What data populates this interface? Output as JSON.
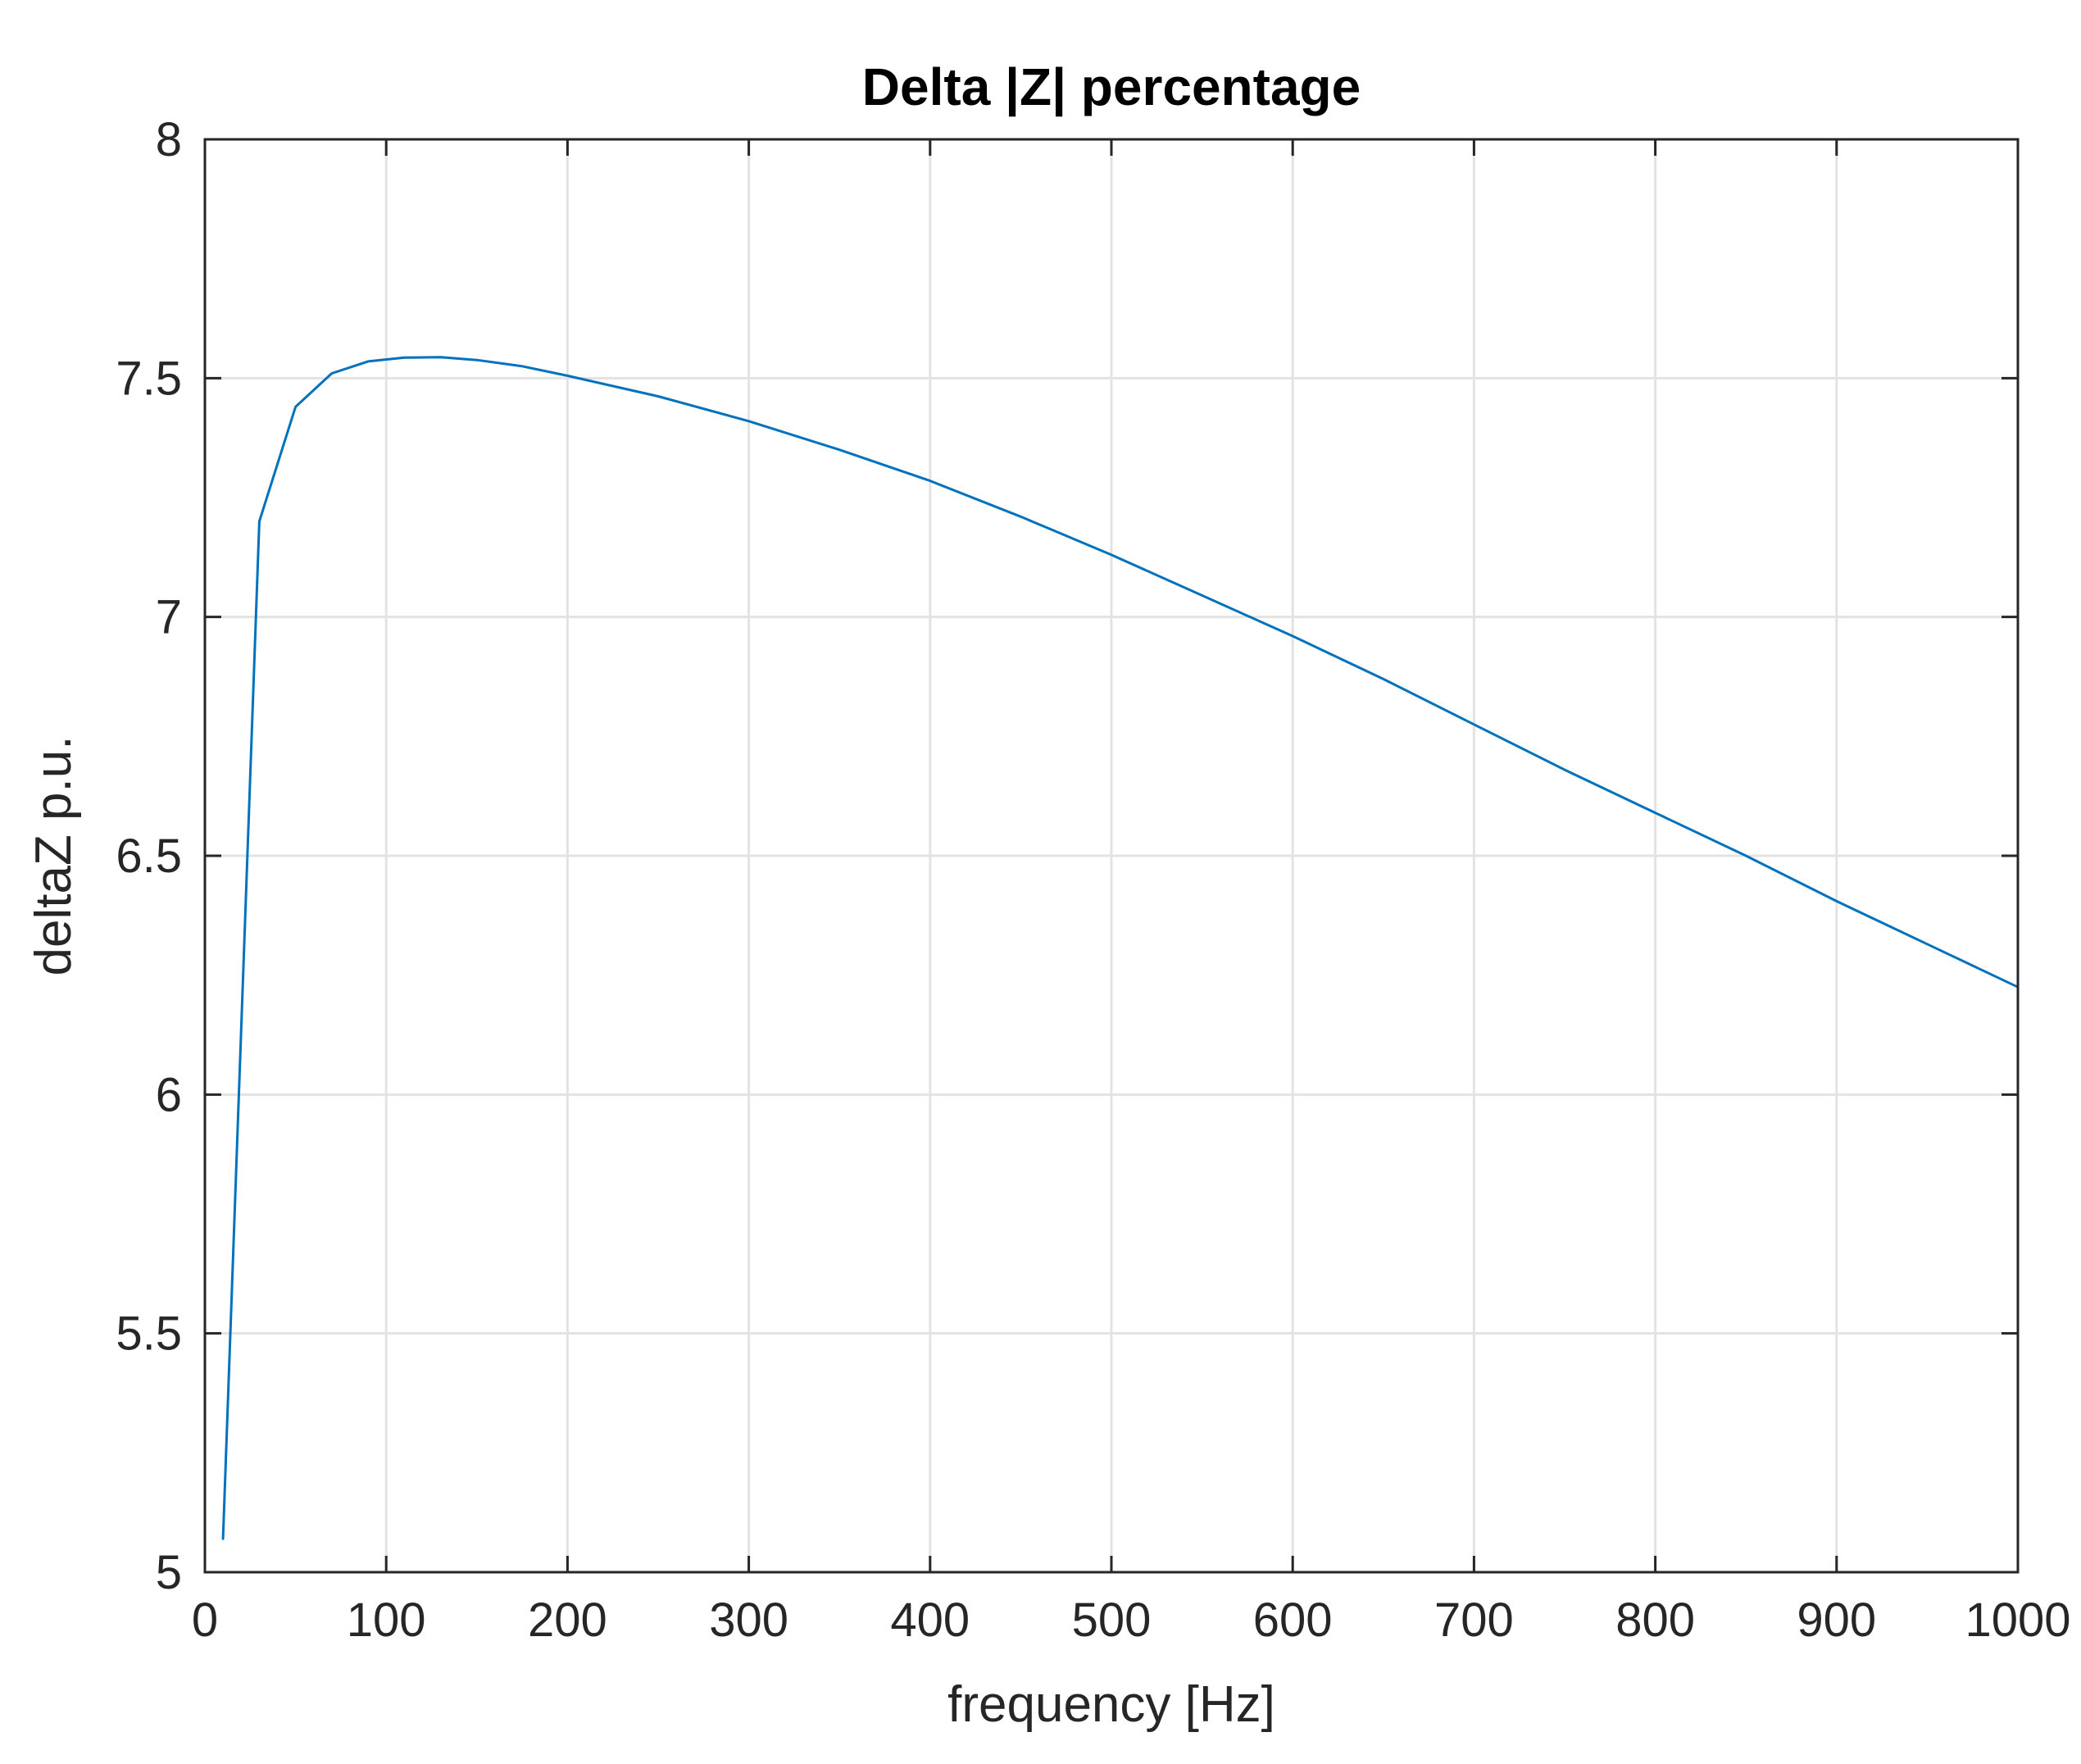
{
  "chart_data": {
    "type": "line",
    "title": "Delta |Z| percentage",
    "xlabel": "frequency [Hz]",
    "ylabel": "deltaZ p.u.",
    "xlim": [
      0,
      1000
    ],
    "ylim": [
      5,
      8
    ],
    "xticks": [
      0,
      100,
      200,
      300,
      400,
      500,
      600,
      700,
      800,
      900,
      1000
    ],
    "yticks": [
      5,
      5.5,
      6,
      6.5,
      7,
      7.5,
      8
    ],
    "xtick_labels": [
      "0",
      "100",
      "200",
      "300",
      "400",
      "500",
      "600",
      "700",
      "800",
      "900",
      "1000"
    ],
    "ytick_labels": [
      "5",
      "5.5",
      "6",
      "6.5",
      "7",
      "7.5",
      "8"
    ],
    "grid": true,
    "series": [
      {
        "name": "deltaZ",
        "color": "#0072BD",
        "x": [
          10,
          30,
          50,
          70,
          90,
          110,
          130,
          150,
          175,
          200,
          250,
          300,
          350,
          400,
          450,
          500,
          550,
          600,
          650,
          700,
          750,
          800,
          850,
          900,
          950,
          1000
        ],
        "y": [
          5.07,
          7.2,
          7.44,
          7.51,
          7.535,
          7.543,
          7.544,
          7.538,
          7.525,
          7.505,
          7.462,
          7.41,
          7.35,
          7.285,
          7.21,
          7.13,
          7.045,
          6.96,
          6.87,
          6.775,
          6.68,
          6.59,
          6.5,
          6.405,
          6.315,
          6.225
        ]
      }
    ]
  }
}
